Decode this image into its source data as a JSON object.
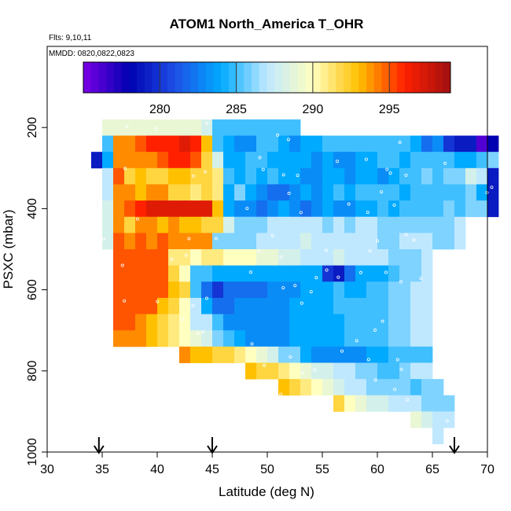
{
  "chart_data": {
    "type": "heatmap",
    "title": "ATOM1 North_America T_OHR",
    "flights_note": "Flts: 9,10,11",
    "dates_note": "MMDD: 0820,0822,0823",
    "xlabel": "Latitude (deg N)",
    "ylabel": "PSXC (mbar)",
    "xlim": [
      30,
      70
    ],
    "ylim": [
      1000,
      0
    ],
    "x_ticks": [
      "30",
      "35",
      "40",
      "45",
      "50",
      "55",
      "60",
      "65",
      "70"
    ],
    "y_ticks": [
      "200",
      "400",
      "600",
      "800",
      "1000"
    ],
    "colorbar": {
      "range": [
        275,
        299
      ],
      "ticks": [
        "280",
        "285",
        "290",
        "295"
      ],
      "colors": [
        "#7a00e6",
        "#0000b0",
        "#1e50e6",
        "#00aaff",
        "#bfe8ff",
        "#ffffc0",
        "#ffc000",
        "#ff2000",
        "#a01010"
      ]
    },
    "arrows_at_latitude": [
      34.7,
      45,
      67
    ],
    "cell_size": {
      "lat_deg": 1,
      "pressure_mbar": 40
    },
    "rows": [
      {
        "p": 200,
        "lat_start": 35,
        "values": [
          289,
          289,
          289,
          289,
          289,
          289,
          289,
          289,
          289,
          288,
          285,
          285,
          285,
          285,
          285,
          285,
          285,
          285
        ]
      },
      {
        "p": 240,
        "lat_start": 35,
        "values": [
          285,
          294,
          294,
          295,
          296,
          296,
          296,
          297,
          296,
          293,
          285,
          284,
          283,
          283,
          285,
          285,
          284,
          283,
          284,
          284,
          285,
          285,
          285,
          285,
          285,
          285,
          285,
          285,
          284,
          282,
          283,
          280,
          279,
          279,
          276,
          278
        ]
      },
      {
        "p": 280,
        "lat_start": 34,
        "values": [
          279,
          284,
          294,
          294,
          294,
          294,
          295,
          296,
          296,
          295,
          292,
          288,
          284,
          284,
          285,
          285,
          284,
          284,
          284,
          284,
          283,
          284,
          283,
          283,
          284,
          284,
          285,
          285,
          284,
          285,
          285,
          285,
          285,
          284,
          284,
          285,
          286
        ]
      },
      {
        "p": 320,
        "lat_start": 35,
        "values": [
          287,
          295,
          292,
          293,
          292,
          292,
          293,
          293,
          292,
          292,
          291,
          285,
          284,
          285,
          284,
          285,
          284,
          284,
          283,
          283,
          284,
          284,
          283,
          284,
          284,
          283,
          284,
          285,
          285,
          286,
          285,
          286,
          286,
          288,
          287,
          279
        ]
      },
      {
        "p": 360,
        "lat_start": 35,
        "values": [
          287,
          294,
          294,
          293,
          294,
          294,
          292,
          292,
          291,
          292,
          291,
          284,
          286,
          284,
          283,
          282,
          282,
          283,
          284,
          283,
          284,
          285,
          284,
          285,
          285,
          285,
          285,
          284,
          285,
          285,
          285,
          285,
          285,
          286,
          284,
          279
        ]
      },
      {
        "p": 400,
        "lat_start": 35,
        "values": [
          288,
          294,
          295,
          296,
          297,
          297,
          297,
          297,
          297,
          297,
          293,
          284,
          283,
          283,
          282,
          283,
          284,
          283,
          282,
          283,
          284,
          283,
          283,
          284,
          284,
          285,
          284,
          285,
          285,
          285,
          285,
          286,
          285,
          286,
          286,
          279
        ]
      },
      {
        "p": 440,
        "lat_start": 35,
        "values": [
          288,
          294,
          292,
          294,
          294,
          293,
          294,
          293,
          293,
          292,
          292,
          288,
          286,
          286,
          286,
          287,
          287,
          287,
          287,
          287,
          286,
          287,
          286,
          287,
          287,
          286,
          286,
          286,
          286,
          286,
          286,
          286,
          287
        ]
      },
      {
        "p": 480,
        "lat_start": 35,
        "values": [
          288,
          295,
          294,
          295,
          294,
          295,
          294,
          294,
          294,
          294,
          286,
          286,
          286,
          286,
          287,
          287,
          287,
          287,
          288,
          287,
          287,
          287,
          287,
          287,
          287,
          286,
          286,
          287,
          287,
          287,
          286,
          286,
          287
        ]
      },
      {
        "p": 520,
        "lat_start": 36,
        "values": [
          295,
          295,
          295,
          295,
          295,
          291,
          291,
          290,
          291,
          291,
          290,
          290,
          290,
          289,
          289,
          288,
          288,
          287,
          287,
          287,
          288,
          287,
          287,
          287,
          287,
          286,
          286,
          286,
          287
        ]
      },
      {
        "p": 560,
        "lat_start": 36,
        "values": [
          295,
          295,
          295,
          295,
          295,
          292,
          290,
          285,
          285,
          284,
          284,
          284,
          284,
          284,
          284,
          284,
          284,
          284,
          284,
          280,
          279,
          282,
          284,
          284,
          284,
          285,
          286,
          286,
          287
        ]
      },
      {
        "p": 600,
        "lat_start": 36,
        "values": [
          295,
          295,
          295,
          295,
          295,
          293,
          292,
          285,
          282,
          280,
          282,
          282,
          282,
          282,
          283,
          283,
          283,
          284,
          284,
          284,
          285,
          284,
          284,
          285,
          285,
          286,
          286,
          287,
          287
        ]
      },
      {
        "p": 640,
        "lat_start": 36,
        "values": [
          295,
          295,
          295,
          295,
          293,
          292,
          290,
          287,
          284,
          282,
          282,
          283,
          283,
          283,
          283,
          283,
          284,
          284,
          284,
          284,
          285,
          285,
          285,
          285,
          285,
          286,
          286,
          287,
          287
        ]
      },
      {
        "p": 680,
        "lat_start": 36,
        "values": [
          295,
          295,
          294,
          293,
          292,
          291,
          290,
          287,
          287,
          285,
          283,
          283,
          283,
          283,
          283,
          283,
          284,
          284,
          284,
          284,
          284,
          285,
          285,
          285,
          285,
          286,
          286,
          287,
          287
        ]
      },
      {
        "p": 720,
        "lat_start": 36,
        "values": [
          294,
          294,
          294,
          293,
          292,
          291,
          290,
          289,
          288,
          286,
          285,
          284,
          283,
          283,
          283,
          283,
          284,
          284,
          284,
          284,
          284,
          285,
          285,
          285,
          285,
          286,
          286,
          287,
          287
        ]
      },
      {
        "p": 760,
        "lat_start": 42,
        "values": [
          294,
          293,
          293,
          292,
          292,
          291,
          290,
          289,
          288,
          286,
          286,
          284,
          283,
          283,
          283,
          283,
          283,
          284,
          284,
          285,
          285,
          285,
          285
        ]
      },
      {
        "p": 800,
        "lat_start": 48,
        "values": [
          293,
          292,
          292,
          291,
          290,
          289,
          288,
          288,
          287,
          287,
          286,
          286,
          285,
          285,
          286,
          287,
          287
        ]
      },
      {
        "p": 840,
        "lat_start": 51,
        "values": [
          293,
          292,
          291,
          290,
          289,
          288,
          287,
          287,
          286,
          286,
          286,
          286,
          285,
          286,
          286
        ]
      },
      {
        "p": 880,
        "lat_start": 56,
        "values": [
          292,
          290,
          289,
          288,
          288,
          287,
          287,
          287,
          286,
          286,
          286
        ]
      },
      {
        "p": 920,
        "lat_start": 63,
        "values": [
          289,
          288,
          287,
          287
        ]
      },
      {
        "p": 960,
        "lat_start": 65,
        "values": [
          287
        ]
      }
    ]
  }
}
